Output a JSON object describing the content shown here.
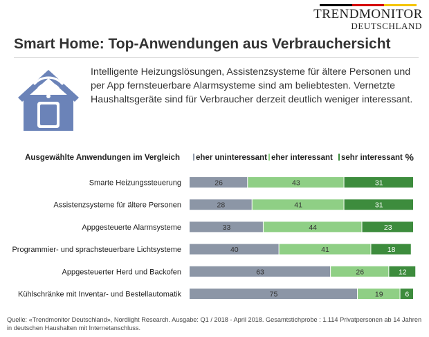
{
  "logo": {
    "line1": "TRENDMONITOR",
    "line2": "DEUTSCHLAND",
    "flag_colors": [
      "#000000",
      "#d40000",
      "#f5c400"
    ]
  },
  "title": "Smart Home: Top-Anwendungen aus Verbrauchersicht",
  "intro": "Intelligente Heizungslösungen, Assistenzsysteme für ältere  Personen und per App fernsteuerbare  Alarmsysteme sind am beliebtesten.  Vernetzte Haushaltsgeräte  sind für Verbraucher derzeit deutlich weniger interessant.",
  "icon": "smart-home-house-phone-wifi-icon",
  "chart_data": {
    "type": "bar",
    "orientation": "horizontal",
    "stacked": true,
    "categories_header": "Ausgewählte Anwendungen im Vergleich",
    "unit": "%",
    "categories": [
      "Smarte Heizungssteuerung",
      "Assistenzsysteme für ältere Personen",
      "Appgesteuerte Alarmsysteme",
      "Programmier- und sprachsteuerbare Lichtsysteme",
      "Appgesteuerter Herd und Backofen",
      "Kühlschränke mit Inventar- und Bestellautomatik"
    ],
    "series": [
      {
        "name": "eher uninteressant",
        "color": "#8c96a6",
        "values": [
          26,
          28,
          33,
          40,
          63,
          75
        ]
      },
      {
        "name": "eher interessant",
        "color": "#8fcf85",
        "values": [
          43,
          41,
          44,
          41,
          26,
          19
        ]
      },
      {
        "name": "sehr interessant",
        "color": "#3d8c3d",
        "values": [
          31,
          31,
          23,
          18,
          12,
          6
        ]
      }
    ],
    "xlim": [
      0,
      100
    ]
  },
  "source": "Quelle: «Trendmonitor Deutschland»,   Nordlight Research. Ausgabe: Q1 / 2018   - April 2018. Gesamtstichprobe  : 1.114 Privatpersonen ab  14 Jahren in deutschen Haushalten mit Internetanschluss."
}
